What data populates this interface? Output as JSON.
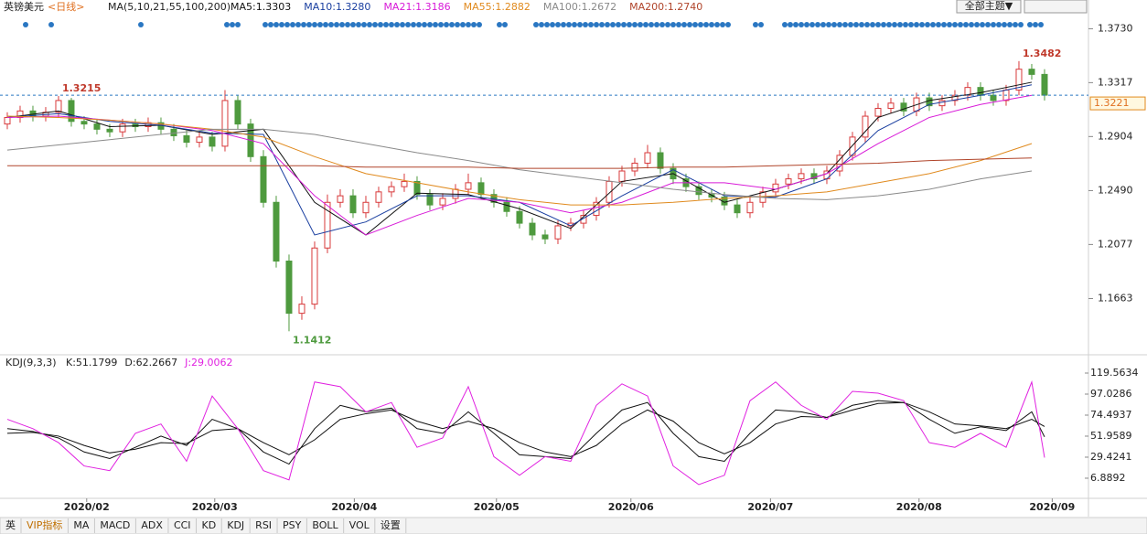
{
  "header": {
    "symbol": "英镑美元",
    "period": "<日线>",
    "ma_params": "MA(5,10,21,55,100,200)",
    "theme_button": "全部主题▼"
  },
  "chart_data": [
    {
      "type": "candlestick",
      "up_color": "#d8393b",
      "down_color": "#4e9a3e",
      "open": [
        1.3,
        1.305,
        1.31,
        1.306,
        1.309,
        1.318,
        1.302,
        1.3,
        1.296,
        1.294,
        1.3,
        1.298,
        1.301,
        1.296,
        1.291,
        1.286,
        1.29,
        1.283,
        1.318,
        1.3,
        1.275,
        1.24,
        1.195,
        1.155,
        1.162,
        1.205,
        1.24,
        1.245,
        1.232,
        1.24,
        1.248,
        1.252,
        1.256,
        1.246,
        1.238,
        1.243,
        1.25,
        1.255,
        1.246,
        1.24,
        1.233,
        1.224,
        1.215,
        1.212,
        1.222,
        1.224,
        1.23,
        1.24,
        1.256,
        1.264,
        1.27,
        1.278,
        1.266,
        1.258,
        1.252,
        1.246,
        1.244,
        1.238,
        1.232,
        1.24,
        1.248,
        1.254,
        1.258,
        1.262,
        1.258,
        1.264,
        1.276,
        1.29,
        1.306,
        1.312,
        1.316,
        1.31,
        1.32,
        1.314,
        1.318,
        1.322,
        1.328,
        1.322,
        1.318,
        1.326,
        1.342,
        1.338
      ],
      "high": [
        1.309,
        1.314,
        1.314,
        1.313,
        1.3215,
        1.32,
        1.306,
        1.304,
        1.3,
        1.304,
        1.304,
        1.305,
        1.305,
        1.3,
        1.295,
        1.294,
        1.294,
        1.326,
        1.322,
        1.304,
        1.28,
        1.245,
        1.2,
        1.168,
        1.21,
        1.246,
        1.25,
        1.25,
        1.245,
        1.252,
        1.256,
        1.262,
        1.26,
        1.25,
        1.247,
        1.254,
        1.262,
        1.259,
        1.25,
        1.244,
        1.237,
        1.228,
        1.219,
        1.226,
        1.228,
        1.234,
        1.244,
        1.26,
        1.268,
        1.274,
        1.284,
        1.282,
        1.27,
        1.262,
        1.256,
        1.25,
        1.248,
        1.242,
        1.244,
        1.252,
        1.258,
        1.262,
        1.266,
        1.266,
        1.268,
        1.28,
        1.294,
        1.31,
        1.316,
        1.32,
        1.32,
        1.324,
        1.324,
        1.322,
        1.326,
        1.332,
        1.332,
        1.326,
        1.33,
        1.3482,
        1.346,
        1.342
      ],
      "low": [
        1.296,
        1.301,
        1.302,
        1.302,
        1.305,
        1.298,
        1.296,
        1.292,
        1.29,
        1.29,
        1.294,
        1.294,
        1.292,
        1.287,
        1.282,
        1.282,
        1.279,
        1.279,
        1.296,
        1.271,
        1.236,
        1.19,
        1.1412,
        1.15,
        1.158,
        1.201,
        1.236,
        1.228,
        1.228,
        1.236,
        1.244,
        1.248,
        1.242,
        1.234,
        1.234,
        1.239,
        1.246,
        1.242,
        1.236,
        1.229,
        1.22,
        1.211,
        1.208,
        1.208,
        1.218,
        1.22,
        1.226,
        1.236,
        1.252,
        1.26,
        1.266,
        1.262,
        1.254,
        1.248,
        1.242,
        1.24,
        1.234,
        1.228,
        1.228,
        1.236,
        1.244,
        1.25,
        1.254,
        1.254,
        1.254,
        1.26,
        1.272,
        1.286,
        1.302,
        1.308,
        1.306,
        1.306,
        1.31,
        1.31,
        1.314,
        1.318,
        1.318,
        1.314,
        1.314,
        1.322,
        1.334,
        1.318
      ],
      "close": [
        1.305,
        1.31,
        1.306,
        1.309,
        1.318,
        1.302,
        1.3,
        1.296,
        1.294,
        1.3,
        1.298,
        1.301,
        1.296,
        1.291,
        1.286,
        1.29,
        1.283,
        1.318,
        1.3,
        1.275,
        1.24,
        1.195,
        1.155,
        1.162,
        1.205,
        1.24,
        1.245,
        1.232,
        1.24,
        1.248,
        1.252,
        1.256,
        1.246,
        1.238,
        1.243,
        1.25,
        1.255,
        1.246,
        1.24,
        1.233,
        1.224,
        1.215,
        1.212,
        1.222,
        1.224,
        1.23,
        1.24,
        1.256,
        1.264,
        1.27,
        1.278,
        1.266,
        1.258,
        1.252,
        1.246,
        1.244,
        1.238,
        1.232,
        1.24,
        1.248,
        1.254,
        1.258,
        1.262,
        1.258,
        1.264,
        1.276,
        1.29,
        1.306,
        1.312,
        1.316,
        1.31,
        1.32,
        1.314,
        1.318,
        1.322,
        1.328,
        1.322,
        1.318,
        1.326,
        1.342,
        1.338,
        1.3221
      ],
      "ma_index": [
        0,
        4,
        8,
        12,
        16,
        20,
        24,
        28,
        32,
        36,
        40,
        44,
        48,
        52,
        56,
        60,
        64,
        68,
        72,
        76,
        80
      ],
      "series": [
        {
          "name": "MA5",
          "legend": "MA5:1.3303",
          "color": "#111111",
          "values": [
            1.305,
            1.31,
            1.298,
            1.299,
            1.292,
            1.296,
            1.24,
            1.215,
            1.247,
            1.246,
            1.235,
            1.22,
            1.256,
            1.262,
            1.24,
            1.25,
            1.262,
            1.305,
            1.318,
            1.324,
            1.332
          ]
        },
        {
          "name": "MA10",
          "legend": "MA10:1.3280",
          "color": "#1a3fa0",
          "values": [
            1.305,
            1.308,
            1.302,
            1.299,
            1.293,
            1.292,
            1.215,
            1.225,
            1.245,
            1.245,
            1.24,
            1.222,
            1.245,
            1.265,
            1.245,
            1.244,
            1.258,
            1.295,
            1.315,
            1.322,
            1.33
          ]
        },
        {
          "name": "MA21",
          "legend": "MA21:1.3186",
          "color": "#d81bd8",
          "values": [
            1.305,
            1.306,
            1.303,
            1.3,
            1.295,
            1.285,
            1.245,
            1.215,
            1.23,
            1.243,
            1.24,
            1.232,
            1.24,
            1.255,
            1.255,
            1.25,
            1.262,
            1.285,
            1.305,
            1.315,
            1.322
          ]
        },
        {
          "name": "MA55",
          "legend": "MA55:1.2882",
          "color": "#e08a1e",
          "values": [
            1.306,
            1.305,
            1.303,
            1.3,
            1.296,
            1.29,
            1.275,
            1.262,
            1.255,
            1.248,
            1.242,
            1.238,
            1.238,
            1.24,
            1.243,
            1.245,
            1.248,
            1.255,
            1.262,
            1.272,
            1.285
          ]
        },
        {
          "name": "MA100",
          "legend": "MA100:1.2672",
          "color": "#8a8a8a",
          "values": [
            1.28,
            1.284,
            1.288,
            1.292,
            1.296,
            1.296,
            1.292,
            1.285,
            1.278,
            1.272,
            1.265,
            1.26,
            1.255,
            1.25,
            1.246,
            1.243,
            1.242,
            1.245,
            1.25,
            1.258,
            1.264
          ]
        },
        {
          "name": "MA200",
          "legend": "MA200:1.2740",
          "color": "#b0442a",
          "values": [
            1.268,
            1.268,
            1.268,
            1.268,
            1.268,
            1.268,
            1.268,
            1.267,
            1.267,
            1.267,
            1.266,
            1.266,
            1.266,
            1.267,
            1.267,
            1.268,
            1.269,
            1.27,
            1.272,
            1.273,
            1.274
          ]
        }
      ],
      "annotations": {
        "high": [
          1.3215,
          1.3482
        ],
        "low": [
          1.1412
        ]
      },
      "high_color": "#c0392b",
      "low_color": "#4e9a3e",
      "last_price": {
        "value": 1.3221,
        "label": "1.3221"
      },
      "xlim": [
        -0.57,
        84.43
      ],
      "ylim": [
        1.1232,
        1.3838
      ],
      "yticks": [
        {
          "value": 1.373,
          "label": "1.3730"
        },
        1.3317,
        1.2904,
        {
          "value": 1.249,
          "label": "1.2490"
        },
        1.2077,
        1.1663
      ],
      "xticks": [
        {
          "value": 6.2,
          "label": "2020/02"
        },
        {
          "value": 16.2,
          "label": "2020/03"
        },
        {
          "value": 27.1,
          "label": "2020/04"
        },
        {
          "value": 38.2,
          "label": "2020/05"
        },
        {
          "value": 48.7,
          "label": "2020/06"
        },
        {
          "value": 59.6,
          "label": "2020/07"
        },
        {
          "value": 71.2,
          "label": "2020/08"
        },
        {
          "value": 81.6,
          "label": "2020/09"
        }
      ]
    },
    {
      "type": "line",
      "title": "KDJ(9,3,3)",
      "x": [
        0,
        2,
        4,
        6,
        8,
        10,
        12,
        14,
        16,
        18,
        20,
        22,
        24,
        26,
        28,
        30,
        32,
        34,
        36,
        38,
        40,
        42,
        44,
        46,
        48,
        50,
        52,
        54,
        56,
        58,
        60,
        62,
        64,
        66,
        68,
        70,
        72,
        74,
        76,
        78,
        80,
        81
      ],
      "series": [
        {
          "name": "K",
          "legend": "K:51.1799",
          "color": "#111111",
          "values": [
            60,
            57,
            50,
            35,
            28,
            40,
            52,
            42,
            70,
            60,
            35,
            22,
            60,
            85,
            78,
            82,
            60,
            55,
            78,
            55,
            32,
            30,
            28,
            55,
            80,
            88,
            55,
            30,
            25,
            55,
            80,
            78,
            72,
            85,
            90,
            88,
            70,
            55,
            62,
            58,
            78,
            51.1799
          ]
        },
        {
          "name": "D",
          "legend": "D:62.2667",
          "color": "#111111",
          "values": [
            55,
            56,
            52,
            42,
            34,
            38,
            45,
            44,
            58,
            60,
            45,
            32,
            48,
            70,
            76,
            80,
            68,
            60,
            68,
            60,
            45,
            35,
            30,
            42,
            65,
            80,
            68,
            45,
            33,
            45,
            65,
            73,
            72,
            80,
            87,
            88,
            78,
            65,
            63,
            60,
            70,
            62.2667
          ]
        },
        {
          "name": "J",
          "legend": "J:29.0062",
          "color": "#e020e0",
          "values": [
            70,
            60,
            45,
            20,
            15,
            55,
            65,
            25,
            95,
            60,
            15,
            5,
            110,
            105,
            78,
            88,
            40,
            50,
            105,
            30,
            10,
            30,
            25,
            85,
            108,
            95,
            20,
            0,
            10,
            90,
            110,
            85,
            70,
            100,
            98,
            90,
            45,
            40,
            55,
            40,
            110,
            29.0062
          ]
        }
      ],
      "xlim": [
        -0.57,
        84.43
      ],
      "ylim": [
        -14.7,
        127.4
      ],
      "yticks": [
        119.5634,
        97.0286,
        74.4937,
        51.9589,
        29.4241,
        6.8892
      ]
    }
  ],
  "tabs": [
    "英",
    "VIP指标",
    "MA",
    "MACD",
    "ADX",
    "CCI",
    "KD",
    "KDJ",
    "RSI",
    "PSY",
    "BOLL",
    "VOL",
    "设置"
  ]
}
